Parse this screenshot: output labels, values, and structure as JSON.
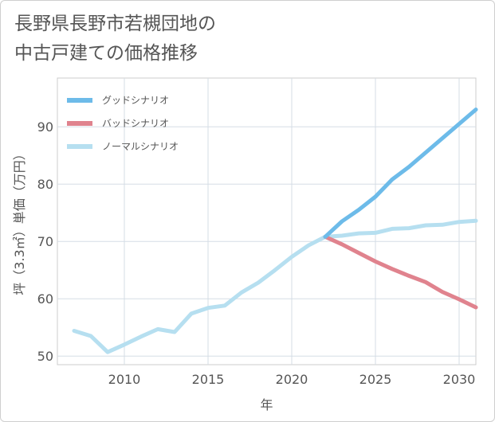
{
  "title_lines": [
    "長野県長野市若槻団地の",
    "中古戸建ての価格推移"
  ],
  "chart_data": {
    "type": "line",
    "xlabel": "年",
    "ylabel": "坪（3.3㎡）単価（万円）",
    "xlim": [
      2006,
      2031
    ],
    "ylim": [
      48.5,
      98.5
    ],
    "x_ticks": [
      2010,
      2015,
      2020,
      2025,
      2030
    ],
    "y_ticks": [
      50,
      60,
      70,
      80,
      90
    ],
    "grid": true,
    "legend_position": "top-left",
    "series": [
      {
        "name": "グッドシナリオ",
        "color": "#6dbbe9",
        "x": [
          2022,
          2023,
          2024,
          2025,
          2026,
          2027,
          2028,
          2029,
          2030,
          2031
        ],
        "y": [
          70.8,
          73.5,
          75.5,
          77.8,
          80.8,
          83.0,
          85.5,
          88.0,
          90.5,
          93.0
        ]
      },
      {
        "name": "バッドシナリオ",
        "color": "#e0838e",
        "x": [
          2022,
          2023,
          2024,
          2025,
          2026,
          2027,
          2028,
          2029,
          2030,
          2031
        ],
        "y": [
          70.8,
          69.5,
          68.0,
          66.5,
          65.2,
          64.0,
          62.9,
          61.2,
          59.9,
          58.5
        ]
      },
      {
        "name": "ノーマルシナリオ",
        "color": "#b6dff0",
        "x": [
          2007,
          2008,
          2009,
          2010,
          2011,
          2012,
          2013,
          2014,
          2015,
          2016,
          2017,
          2018,
          2019,
          2020,
          2021,
          2022,
          2023,
          2024,
          2025,
          2026,
          2027,
          2028,
          2029,
          2030,
          2031
        ],
        "y": [
          54.4,
          53.5,
          50.7,
          52.0,
          53.4,
          54.7,
          54.2,
          57.4,
          58.4,
          58.8,
          61.1,
          62.8,
          65.0,
          67.3,
          69.3,
          70.8,
          71.0,
          71.4,
          71.5,
          72.2,
          72.3,
          72.8,
          72.9,
          73.4,
          73.6
        ]
      }
    ]
  }
}
